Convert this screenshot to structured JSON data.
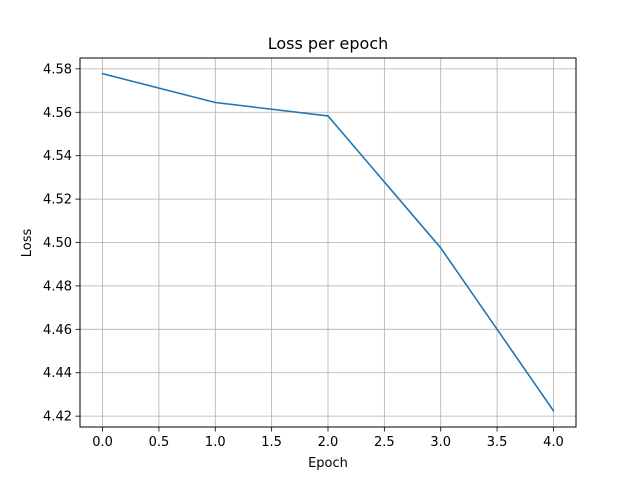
{
  "chart_data": {
    "type": "line",
    "title": "Loss per epoch",
    "xlabel": "Epoch",
    "ylabel": "Loss",
    "grid": true,
    "xlim": [
      -0.2,
      4.2
    ],
    "ylim": [
      4.415,
      4.585
    ],
    "xticks": [
      0.0,
      0.5,
      1.0,
      1.5,
      2.0,
      2.5,
      3.0,
      3.5,
      4.0
    ],
    "xtick_labels": [
      "0.0",
      "0.5",
      "1.0",
      "1.5",
      "2.0",
      "2.5",
      "3.0",
      "3.5",
      "4.0"
    ],
    "yticks": [
      4.42,
      4.44,
      4.46,
      4.48,
      4.5,
      4.52,
      4.54,
      4.56,
      4.58
    ],
    "ytick_labels": [
      "4.42",
      "4.44",
      "4.46",
      "4.48",
      "4.50",
      "4.52",
      "4.54",
      "4.56",
      "4.58"
    ],
    "series": [
      {
        "name": "loss",
        "color": "#1f77b4",
        "x": [
          0,
          1,
          2,
          3,
          4
        ],
        "y": [
          4.5778,
          4.5645,
          4.5583,
          4.4975,
          4.4225
        ]
      }
    ]
  }
}
